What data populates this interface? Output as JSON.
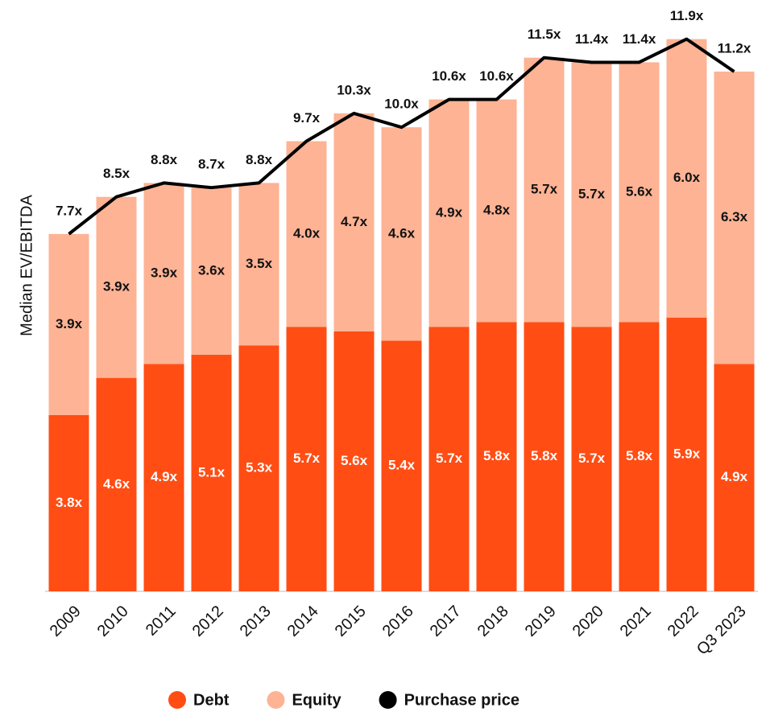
{
  "chart_data": {
    "type": "bar",
    "stacked": true,
    "y_label": "Median EV/EBITDA",
    "categories": [
      "2009",
      "2010",
      "2011",
      "2012",
      "2013",
      "2014",
      "2015",
      "2016",
      "2017",
      "2018",
      "2019",
      "2020",
      "2021",
      "2022",
      "Q3 2023"
    ],
    "ylim": [
      0,
      12.5
    ],
    "series": [
      {
        "name": "Debt",
        "type": "bar",
        "color": "#ff4d14",
        "values": [
          3.8,
          4.6,
          4.9,
          5.1,
          5.3,
          5.7,
          5.6,
          5.4,
          5.7,
          5.8,
          5.8,
          5.7,
          5.8,
          5.9,
          4.9
        ],
        "value_labels": [
          "3.8x",
          "4.6x",
          "4.9x",
          "5.1x",
          "5.3x",
          "5.7x",
          "5.6x",
          "5.4x",
          "5.7x",
          "5.8x",
          "5.8x",
          "5.7x",
          "5.8x",
          "5.9x",
          "4.9x"
        ]
      },
      {
        "name": "Equity",
        "type": "bar",
        "color": "#fdb394",
        "values": [
          3.9,
          3.9,
          3.9,
          3.6,
          3.5,
          4.0,
          4.7,
          4.6,
          4.9,
          4.8,
          5.7,
          5.7,
          5.6,
          6.0,
          6.3
        ],
        "value_labels": [
          "3.9x",
          "3.9x",
          "3.9x",
          "3.6x",
          "3.5x",
          "4.0x",
          "4.7x",
          "4.6x",
          "4.9x",
          "4.8x",
          "5.7x",
          "5.7x",
          "5.6x",
          "6.0x",
          "6.3x"
        ]
      },
      {
        "name": "Purchase price",
        "type": "line",
        "color": "#000000",
        "values": [
          7.7,
          8.5,
          8.8,
          8.7,
          8.8,
          9.7,
          10.3,
          10.0,
          10.6,
          10.6,
          11.5,
          11.4,
          11.4,
          11.9,
          11.2
        ],
        "value_labels": [
          "7.7x",
          "8.5x",
          "8.8x",
          "8.7x",
          "8.8x",
          "9.7x",
          "10.3x",
          "10.0x",
          "10.6x",
          "10.6x",
          "11.5x",
          "11.4x",
          "11.4x",
          "11.9x",
          "11.2x"
        ]
      }
    ]
  }
}
